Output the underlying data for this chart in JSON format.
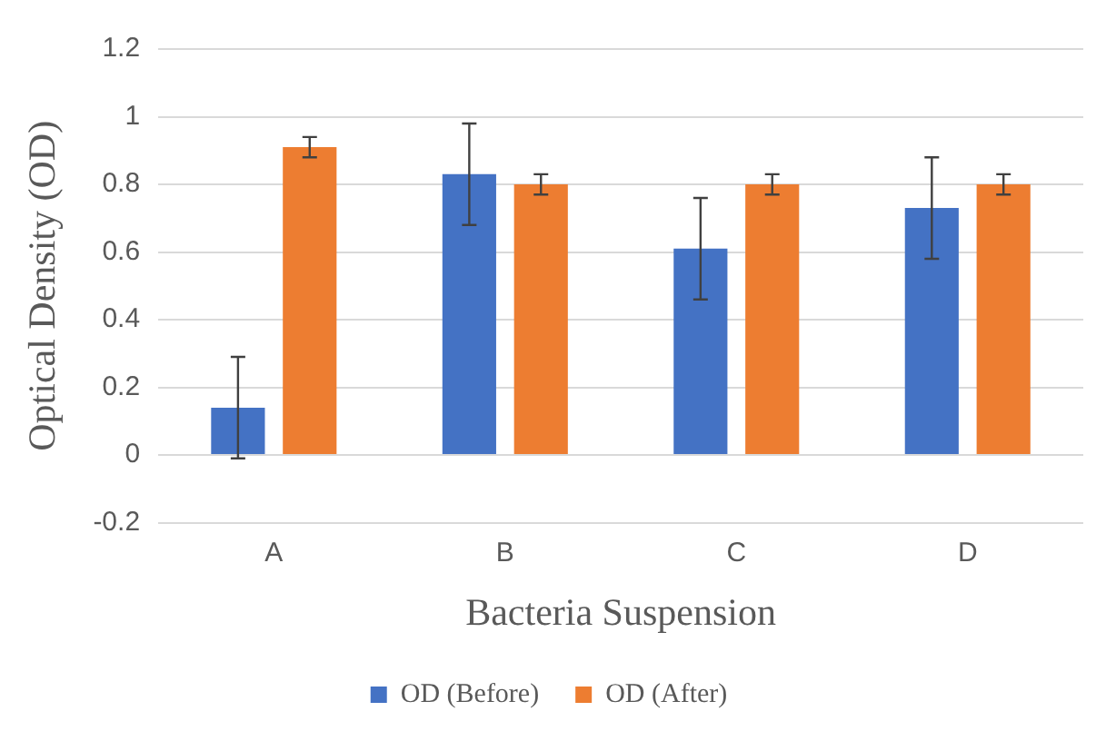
{
  "chart_data": {
    "type": "bar",
    "xlabel": "Bacteria Suspension",
    "ylabel": "Optical Density (OD)",
    "categories": [
      "A",
      "B",
      "C",
      "D"
    ],
    "series": [
      {
        "name": "OD (Before)",
        "color": "#4472c4",
        "values": [
          0.14,
          0.83,
          0.61,
          0.73
        ],
        "errors": [
          0.15,
          0.15,
          0.15,
          0.15
        ]
      },
      {
        "name": "OD (After)",
        "color": "#ed7d31",
        "values": [
          0.91,
          0.8,
          0.8,
          0.8
        ],
        "errors": [
          0.03,
          0.03,
          0.03,
          0.03
        ]
      }
    ],
    "ylim": [
      -0.2,
      1.2
    ],
    "yticks": [
      -0.2,
      0,
      0.2,
      0.4,
      0.6,
      0.8,
      1,
      1.2
    ],
    "grid": "y",
    "legend": "bottom"
  }
}
